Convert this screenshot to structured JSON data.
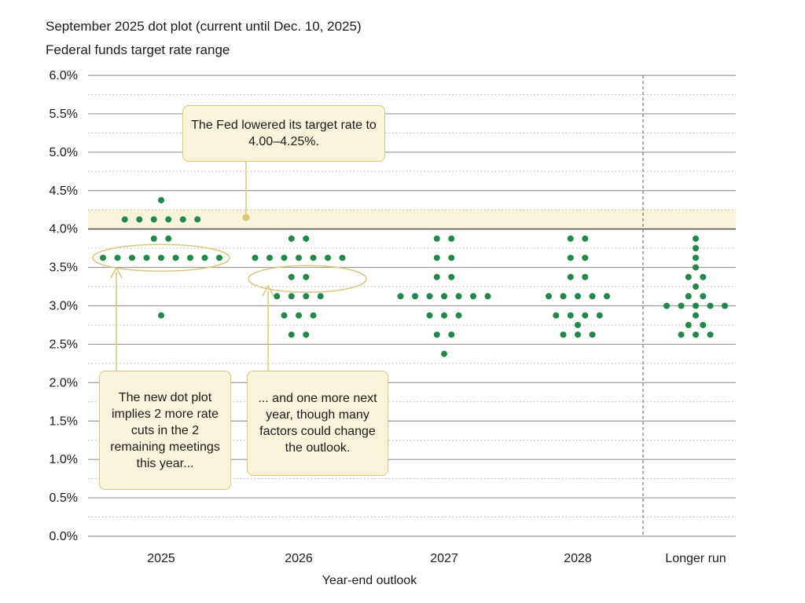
{
  "header": {
    "title": "September 2025 dot plot (current until Dec. 10, 2025)",
    "subtitle": "Federal funds target rate range"
  },
  "callouts": {
    "fed_lowered": "The Fed lowered its target rate to 4.00–4.25%.",
    "two_cuts": "The new dot plot implies 2 more rate cuts in the 2 remaining meetings this year...",
    "one_more": "... and one more next year, though many factors could change the outlook."
  },
  "colors": {
    "dot": "#1e8a4a",
    "band": "#f8f4d9",
    "callout_border": "#d8c877",
    "grid": "#9a9a9a"
  },
  "chart_data": {
    "type": "scatter",
    "title": "September 2025 dot plot (current until Dec. 10, 2025)",
    "ylabel": "Federal funds target rate range",
    "xlabel": "Year-end outlook",
    "categories": [
      "2025",
      "2026",
      "2027",
      "2028",
      "Longer run"
    ],
    "ylim": [
      0,
      6
    ],
    "yticks": [
      "0.0%",
      "0.5%",
      "1.0%",
      "1.5%",
      "2.0%",
      "2.5%",
      "3.0%",
      "3.5%",
      "4.0%",
      "4.5%",
      "5.0%",
      "5.5%",
      "6.0%"
    ],
    "current_range": [
      4.0,
      4.25
    ],
    "dots": [
      {
        "category": "2025",
        "rates": [
          {
            "rate": 4.375,
            "count": 1
          },
          {
            "rate": 4.125,
            "count": 6
          },
          {
            "rate": 3.875,
            "count": 2
          },
          {
            "rate": 3.625,
            "count": 9
          },
          {
            "rate": 2.875,
            "count": 1
          }
        ]
      },
      {
        "category": "2026",
        "rates": [
          {
            "rate": 3.875,
            "count": 2
          },
          {
            "rate": 3.625,
            "count": 7
          },
          {
            "rate": 3.375,
            "count": 2
          },
          {
            "rate": 3.125,
            "count": 4
          },
          {
            "rate": 2.875,
            "count": 3
          },
          {
            "rate": 2.625,
            "count": 2
          }
        ]
      },
      {
        "category": "2027",
        "rates": [
          {
            "rate": 3.875,
            "count": 2
          },
          {
            "rate": 3.625,
            "count": 2
          },
          {
            "rate": 3.375,
            "count": 2
          },
          {
            "rate": 3.125,
            "count": 7
          },
          {
            "rate": 2.875,
            "count": 3
          },
          {
            "rate": 2.625,
            "count": 2
          },
          {
            "rate": 2.375,
            "count": 1
          }
        ]
      },
      {
        "category": "2028",
        "rates": [
          {
            "rate": 3.875,
            "count": 2
          },
          {
            "rate": 3.625,
            "count": 2
          },
          {
            "rate": 3.375,
            "count": 2
          },
          {
            "rate": 3.125,
            "count": 5
          },
          {
            "rate": 2.875,
            "count": 4
          },
          {
            "rate": 2.75,
            "count": 1
          },
          {
            "rate": 2.625,
            "count": 3
          }
        ]
      },
      {
        "category": "Longer run",
        "rates": [
          {
            "rate": 3.875,
            "count": 1
          },
          {
            "rate": 3.75,
            "count": 1
          },
          {
            "rate": 3.625,
            "count": 1
          },
          {
            "rate": 3.5,
            "count": 1
          },
          {
            "rate": 3.375,
            "count": 2
          },
          {
            "rate": 3.25,
            "count": 1
          },
          {
            "rate": 3.125,
            "count": 2
          },
          {
            "rate": 3.0,
            "count": 5
          },
          {
            "rate": 2.875,
            "count": 1
          },
          {
            "rate": 2.75,
            "count": 2
          },
          {
            "rate": 2.625,
            "count": 3
          }
        ]
      }
    ]
  }
}
